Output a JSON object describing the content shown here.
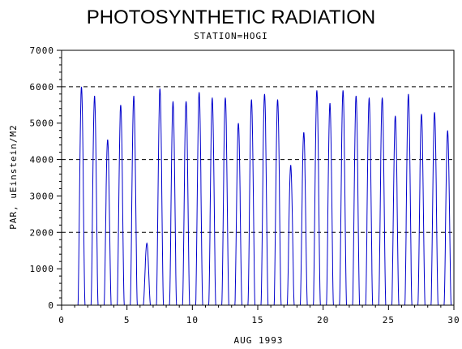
{
  "chart_data": {
    "type": "line",
    "title": "PHOTOSYNTHETIC RADIATION",
    "subtitle": "STATION=HOGI",
    "xlabel": "AUG 1993",
    "ylabel": "PAR, uEinstein/M2",
    "xlim": [
      0,
      30
    ],
    "ylim": [
      0,
      7000
    ],
    "xticks": [
      0,
      5,
      10,
      15,
      20,
      25,
      30
    ],
    "yticks": [
      0,
      1000,
      2000,
      3000,
      4000,
      5000,
      6000,
      7000
    ],
    "gridlines_y": [
      2000,
      4000,
      6000
    ],
    "grid_style": "dashed",
    "series": [
      {
        "color": "#0000cc",
        "daily_peaks": [
          {
            "day": 1,
            "peak": 6000
          },
          {
            "day": 2,
            "peak": 5750
          },
          {
            "day": 3,
            "peak": 4550
          },
          {
            "day": 4,
            "peak": 5500
          },
          {
            "day": 5,
            "peak": 5750
          },
          {
            "day": 6,
            "peak": 1700
          },
          {
            "day": 7,
            "peak": 5950
          },
          {
            "day": 8,
            "peak": 5600
          },
          {
            "day": 9,
            "peak": 5600
          },
          {
            "day": 10,
            "peak": 5850
          },
          {
            "day": 11,
            "peak": 5700
          },
          {
            "day": 12,
            "peak": 5700
          },
          {
            "day": 13,
            "peak": 5000
          },
          {
            "day": 14,
            "peak": 5650
          },
          {
            "day": 15,
            "peak": 5800
          },
          {
            "day": 16,
            "peak": 5650
          },
          {
            "day": 17,
            "peak": 3850
          },
          {
            "day": 18,
            "peak": 4750
          },
          {
            "day": 19,
            "peak": 5900
          },
          {
            "day": 20,
            "peak": 5550
          },
          {
            "day": 21,
            "peak": 5900
          },
          {
            "day": 22,
            "peak": 5750
          },
          {
            "day": 23,
            "peak": 5700
          },
          {
            "day": 24,
            "peak": 5700
          },
          {
            "day": 25,
            "peak": 5200
          },
          {
            "day": 26,
            "peak": 5800
          },
          {
            "day": 27,
            "peak": 5250
          },
          {
            "day": 28,
            "peak": 5300
          },
          {
            "day": 29,
            "peak": 4800
          }
        ]
      }
    ]
  }
}
